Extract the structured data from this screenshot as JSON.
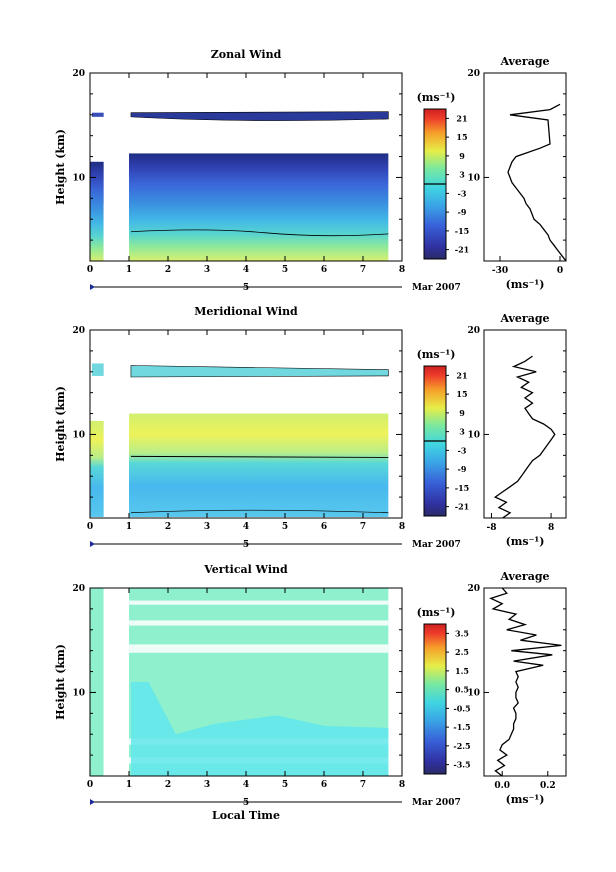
{
  "chart_data": [
    {
      "type": "heatmap",
      "title": "Zonal Wind",
      "ylabel": "Height (km)",
      "ylim": [
        2,
        20
      ],
      "y_ticks": [
        "20",
        "10"
      ],
      "x_ticks": [
        "0",
        "1",
        "2",
        "3",
        "4",
        "5",
        "6",
        "7",
        "8"
      ],
      "xlim": [
        0,
        8
      ],
      "date_row": {
        "day": "5",
        "month": "Mar 2007"
      },
      "colorbar": {
        "unit": "(ms⁻¹)",
        "ticks": [
          "21",
          "15",
          "9",
          "3",
          "-3",
          "-9",
          "-15",
          "-21"
        ],
        "contour_at": 0
      },
      "average": {
        "title": "Average",
        "xlabel": "(ms⁻¹)",
        "x_ticks": [
          "-30",
          "0"
        ],
        "xlim": [
          -38,
          3
        ],
        "y_ticks": [
          "20",
          "10"
        ],
        "profile": [
          [
            3,
            2
          ],
          [
            1,
            2.5
          ],
          [
            -1,
            3
          ],
          [
            -3,
            3.5
          ],
          [
            -5,
            4
          ],
          [
            -6,
            4.5
          ],
          [
            -8,
            5
          ],
          [
            -10,
            5.5
          ],
          [
            -13,
            6
          ],
          [
            -14,
            6.5
          ],
          [
            -15,
            7
          ],
          [
            -17,
            7.5
          ],
          [
            -18,
            8
          ],
          [
            -20,
            8.5
          ],
          [
            -22,
            9
          ],
          [
            -24,
            9.5
          ],
          [
            -25,
            10
          ],
          [
            -26,
            10.5
          ],
          [
            -25,
            11
          ],
          [
            -24,
            11.5
          ],
          [
            -22,
            12
          ],
          [
            -10,
            12.8
          ],
          [
            -5,
            13.2
          ],
          [
            -6,
            15.5
          ],
          [
            -25,
            16
          ],
          [
            -5,
            16.5
          ],
          [
            0,
            17
          ]
        ]
      }
    },
    {
      "type": "heatmap",
      "title": "Meridional Wind",
      "ylabel": "Height (km)",
      "ylim": [
        2,
        20
      ],
      "y_ticks": [
        "20",
        "10"
      ],
      "x_ticks": [
        "0",
        "1",
        "2",
        "3",
        "4",
        "5",
        "6",
        "7",
        "8"
      ],
      "xlim": [
        0,
        8
      ],
      "date_row": {
        "day": "5",
        "month": "Mar 2007"
      },
      "colorbar": {
        "unit": "(ms⁻¹)",
        "ticks": [
          "21",
          "15",
          "9",
          "3",
          "-3",
          "-9",
          "-15",
          "-21"
        ],
        "contour_at": 0
      },
      "average": {
        "title": "Average",
        "xlabel": "(ms⁻¹)",
        "x_ticks": [
          "-8",
          "8"
        ],
        "xlim": [
          -10,
          12
        ],
        "y_ticks": [
          "20",
          "10"
        ],
        "profile": [
          [
            -5,
            2
          ],
          [
            -3,
            2.5
          ],
          [
            -6,
            3
          ],
          [
            -4,
            3.5
          ],
          [
            -7,
            4
          ],
          [
            -5,
            4.5
          ],
          [
            -3,
            5
          ],
          [
            -1,
            5.5
          ],
          [
            0,
            6
          ],
          [
            1,
            6.5
          ],
          [
            2,
            7
          ],
          [
            3,
            7.5
          ],
          [
            5,
            8
          ],
          [
            6,
            8.5
          ],
          [
            7,
            9
          ],
          [
            8,
            9.5
          ],
          [
            9,
            10
          ],
          [
            8,
            10.5
          ],
          [
            6,
            11
          ],
          [
            3,
            11.5
          ],
          [
            2,
            12
          ],
          [
            1,
            12.5
          ],
          [
            3,
            13
          ],
          [
            1,
            13.5
          ],
          [
            3,
            14
          ],
          [
            0,
            14.5
          ],
          [
            2,
            15
          ],
          [
            -1,
            15.5
          ],
          [
            4,
            16
          ],
          [
            -2,
            16.5
          ],
          [
            1,
            17
          ],
          [
            3,
            17.5
          ]
        ]
      }
    },
    {
      "type": "heatmap",
      "title": "Vertical Wind",
      "ylabel": "Height (km)",
      "xlabel": "Local Time",
      "ylim": [
        2,
        20
      ],
      "y_ticks": [
        "20",
        "10"
      ],
      "x_ticks": [
        "0",
        "1",
        "2",
        "3",
        "4",
        "5",
        "6",
        "7",
        "8"
      ],
      "xlim": [
        0,
        8
      ],
      "date_row": {
        "day": "5",
        "month": "Mar 2007"
      },
      "colorbar": {
        "unit": "(ms⁻¹)",
        "ticks": [
          "3.5",
          "2.5",
          "1.5",
          "0.5",
          "-0.5",
          "-1.5",
          "-2.5",
          "-3.5"
        ]
      },
      "average": {
        "title": "Average",
        "xlabel": "(ms⁻¹)",
        "x_ticks": [
          "0.0",
          "0.2"
        ],
        "xlim": [
          -0.08,
          0.28
        ],
        "y_ticks": [
          "20",
          "10"
        ],
        "profile": [
          [
            0.0,
            2
          ],
          [
            -0.03,
            2.5
          ],
          [
            0.01,
            3
          ],
          [
            -0.02,
            3.5
          ],
          [
            0.02,
            4
          ],
          [
            -0.01,
            4.5
          ],
          [
            0.0,
            5
          ],
          [
            0.03,
            5.5
          ],
          [
            0.04,
            6
          ],
          [
            0.05,
            6.5
          ],
          [
            0.05,
            7
          ],
          [
            0.06,
            7.5
          ],
          [
            0.06,
            8
          ],
          [
            0.05,
            8.5
          ],
          [
            0.07,
            9
          ],
          [
            0.06,
            9.5
          ],
          [
            0.06,
            10
          ],
          [
            0.07,
            10.5
          ],
          [
            0.06,
            11
          ],
          [
            0.07,
            11.5
          ],
          [
            0.06,
            12
          ],
          [
            0.18,
            12.6
          ],
          [
            0.05,
            13
          ],
          [
            0.22,
            13.6
          ],
          [
            0.04,
            14
          ],
          [
            0.26,
            14.5
          ],
          [
            0.08,
            15
          ],
          [
            0.15,
            15.5
          ],
          [
            0.02,
            16
          ],
          [
            0.1,
            16.5
          ],
          [
            0.03,
            17
          ],
          [
            0.06,
            17.5
          ],
          [
            -0.04,
            18
          ],
          [
            0.0,
            18.5
          ],
          [
            -0.05,
            19
          ],
          [
            0.02,
            19.5
          ],
          [
            0.0,
            20
          ]
        ]
      }
    }
  ]
}
